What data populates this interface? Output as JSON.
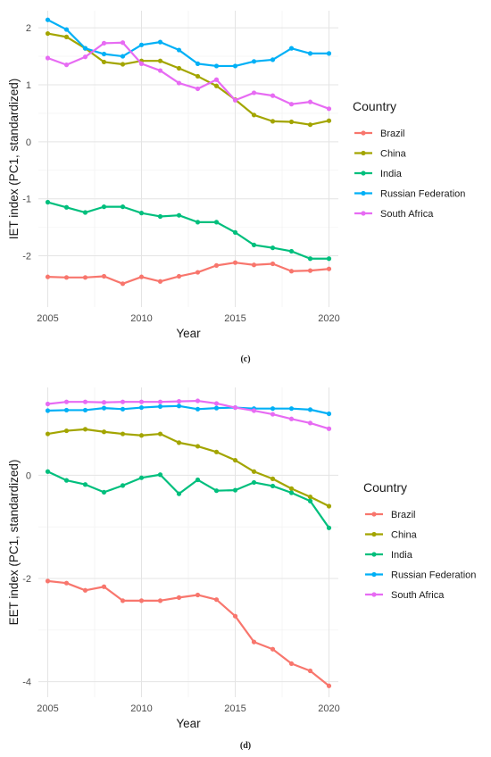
{
  "chart_data": [
    {
      "type": "line",
      "panel_caption": "(c)",
      "xlabel": "Year",
      "ylabel": "IET index (PC1, standardized)",
      "legend_title": "Country",
      "legend_position": "right",
      "grid": true,
      "xlim": [
        2004.5,
        2020.5
      ],
      "ylim": [
        -2.9,
        2.3
      ],
      "x_ticks": [
        2005,
        2010,
        2015,
        2020
      ],
      "y_ticks": [
        -2,
        -1,
        0,
        1,
        2
      ],
      "x": [
        2005,
        2006,
        2007,
        2008,
        2009,
        2010,
        2011,
        2012,
        2013,
        2014,
        2015,
        2016,
        2017,
        2018,
        2019,
        2020
      ],
      "series": [
        {
          "name": "Brazil",
          "color": "#F8766D",
          "values": [
            -2.37,
            -2.38,
            -2.38,
            -2.36,
            -2.49,
            -2.37,
            -2.45,
            -2.36,
            -2.29,
            -2.17,
            -2.12,
            -2.16,
            -2.14,
            -2.27,
            -2.26,
            -2.23
          ]
        },
        {
          "name": "China",
          "color": "#A3A500",
          "values": [
            1.9,
            1.84,
            1.64,
            1.4,
            1.36,
            1.42,
            1.42,
            1.29,
            1.15,
            0.98,
            0.74,
            0.47,
            0.36,
            0.35,
            0.3,
            0.37
          ]
        },
        {
          "name": "India",
          "color": "#00BF7D",
          "values": [
            -1.06,
            -1.15,
            -1.24,
            -1.14,
            -1.14,
            -1.25,
            -1.31,
            -1.29,
            -1.41,
            -1.41,
            -1.59,
            -1.81,
            -1.86,
            -1.92,
            -2.05,
            -2.05
          ]
        },
        {
          "name": "Russian Federation",
          "color": "#00B0F6",
          "values": [
            2.14,
            1.97,
            1.64,
            1.54,
            1.5,
            1.7,
            1.75,
            1.61,
            1.37,
            1.33,
            1.33,
            1.41,
            1.44,
            1.64,
            1.55,
            1.55
          ]
        },
        {
          "name": "South Africa",
          "color": "#E76BF3",
          "values": [
            1.47,
            1.35,
            1.49,
            1.73,
            1.74,
            1.37,
            1.25,
            1.03,
            0.93,
            1.09,
            0.73,
            0.86,
            0.81,
            0.66,
            0.7,
            0.58
          ]
        }
      ]
    },
    {
      "type": "line",
      "panel_caption": "(d)",
      "xlabel": "Year",
      "ylabel": "EET index (PC1, standardized)",
      "legend_title": "Country",
      "legend_position": "right",
      "grid": true,
      "xlim": [
        2004.5,
        2020.5
      ],
      "ylim": [
        -4.3,
        1.7
      ],
      "x_ticks": [
        2005,
        2010,
        2015,
        2020
      ],
      "y_ticks": [
        -4,
        -2,
        0
      ],
      "x": [
        2005,
        2006,
        2007,
        2008,
        2009,
        2010,
        2011,
        2012,
        2013,
        2014,
        2015,
        2016,
        2017,
        2018,
        2019,
        2020
      ],
      "series": [
        {
          "name": "Brazil",
          "color": "#F8766D",
          "values": [
            -2.05,
            -2.09,
            -2.23,
            -2.16,
            -2.43,
            -2.43,
            -2.43,
            -2.37,
            -2.32,
            -2.41,
            -2.73,
            -3.23,
            -3.37,
            -3.65,
            -3.79,
            -4.08
          ]
        },
        {
          "name": "China",
          "color": "#A3A500",
          "values": [
            0.8,
            0.86,
            0.89,
            0.84,
            0.8,
            0.77,
            0.8,
            0.63,
            0.56,
            0.45,
            0.29,
            0.07,
            -0.07,
            -0.26,
            -0.42,
            -0.6
          ]
        },
        {
          "name": "India",
          "color": "#00BF7D",
          "values": [
            0.07,
            -0.1,
            -0.18,
            -0.33,
            -0.2,
            -0.05,
            0.01,
            -0.36,
            -0.09,
            -0.3,
            -0.29,
            -0.14,
            -0.21,
            -0.34,
            -0.5,
            -1.02
          ]
        },
        {
          "name": "Russian Federation",
          "color": "#00B0F6",
          "values": [
            1.25,
            1.26,
            1.26,
            1.3,
            1.28,
            1.31,
            1.33,
            1.34,
            1.28,
            1.3,
            1.31,
            1.29,
            1.29,
            1.29,
            1.27,
            1.19
          ]
        },
        {
          "name": "South Africa",
          "color": "#E76BF3",
          "values": [
            1.38,
            1.42,
            1.42,
            1.41,
            1.42,
            1.42,
            1.42,
            1.43,
            1.44,
            1.39,
            1.31,
            1.25,
            1.18,
            1.09,
            1.01,
            0.9
          ]
        }
      ]
    }
  ]
}
